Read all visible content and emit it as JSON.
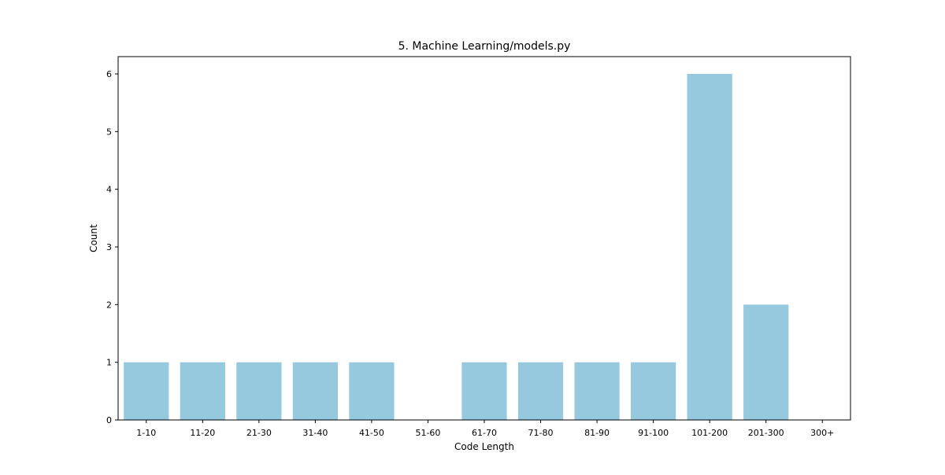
{
  "chart_data": {
    "type": "bar",
    "title": "5. Machine Learning/models.py",
    "xlabel": "Code Length",
    "ylabel": "Count",
    "categories": [
      "1-10",
      "11-20",
      "21-30",
      "31-40",
      "41-50",
      "51-60",
      "61-70",
      "71-80",
      "81-90",
      "91-100",
      "101-200",
      "201-300",
      "300+"
    ],
    "values": [
      1,
      1,
      1,
      1,
      1,
      0,
      1,
      1,
      1,
      1,
      6,
      2,
      0
    ],
    "ylim": [
      0,
      6.3
    ],
    "yticks": [
      0,
      1,
      2,
      3,
      4,
      5,
      6
    ],
    "grid": false,
    "legend": "none",
    "bar_color": "#96c9de"
  }
}
